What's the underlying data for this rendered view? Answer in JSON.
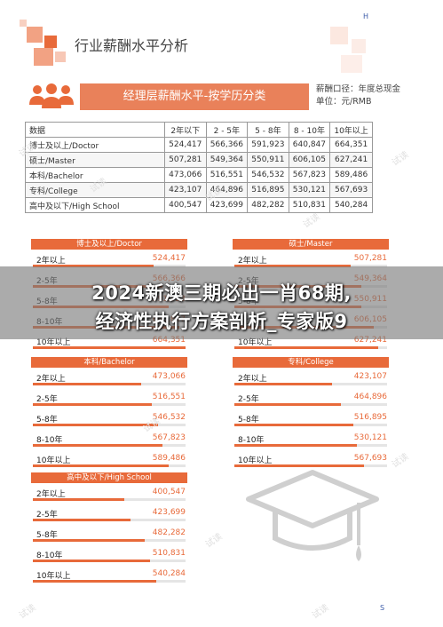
{
  "page": {
    "section_title": "行业薪酬水平分析",
    "corner_letter_top": "H",
    "corner_letter_bottom": "S",
    "watermark_text": "试读"
  },
  "banner": {
    "title": "经理层薪酬水平-按学历分类"
  },
  "unit_note": {
    "line1": "薪酬口径：年度总现金",
    "line2": "单位：元/RMB"
  },
  "table": {
    "headers": [
      "数据",
      "2年以下",
      "2 - 5年",
      "5 - 8年",
      "8 - 10年",
      "10年以上"
    ],
    "rows": [
      {
        "label": "博士及以上/Doctor",
        "values": [
          "524,417",
          "566,366",
          "591,923",
          "640,847",
          "664,351"
        ]
      },
      {
        "label": "硕士/Master",
        "values": [
          "507,281",
          "549,364",
          "550,911",
          "606,105",
          "627,241"
        ]
      },
      {
        "label": "本科/Bachelor",
        "values": [
          "473,066",
          "516,551",
          "546,532",
          "567,823",
          "589,486"
        ]
      },
      {
        "label": "专科/College",
        "values": [
          "423,107",
          "464,896",
          "516,895",
          "530,121",
          "567,693"
        ]
      },
      {
        "label": "高中及以下/High School",
        "values": [
          "400,547",
          "423,699",
          "482,282",
          "510,831",
          "540,284"
        ]
      }
    ]
  },
  "panels": [
    {
      "title": "博士及以上/Doctor",
      "rows": [
        {
          "label": "2年以上",
          "value": "524,417",
          "fill": 0.79
        },
        {
          "label": "2-5年",
          "value": "566,366",
          "fill": 0.85
        },
        {
          "label": "5-8年",
          "value": "591,923",
          "fill": 0.89
        },
        {
          "label": "8-10年",
          "value": "640,847",
          "fill": 0.96
        },
        {
          "label": "10年以上",
          "value": "664,351",
          "fill": 1.0
        }
      ]
    },
    {
      "title": "硕士/Master",
      "rows": [
        {
          "label": "2年以上",
          "value": "507,281",
          "fill": 0.76
        },
        {
          "label": "2-5年",
          "value": "549,364",
          "fill": 0.83
        },
        {
          "label": "5-8年",
          "value": "550,911",
          "fill": 0.83
        },
        {
          "label": "8-10年",
          "value": "606,105",
          "fill": 0.91
        },
        {
          "label": "10年以上",
          "value": "627,241",
          "fill": 0.94
        }
      ]
    },
    {
      "title": "本科/Bachelor",
      "rows": [
        {
          "label": "2年以上",
          "value": "473,066",
          "fill": 0.71
        },
        {
          "label": "2-5年",
          "value": "516,551",
          "fill": 0.78
        },
        {
          "label": "5-8年",
          "value": "546,532",
          "fill": 0.82
        },
        {
          "label": "8-10年",
          "value": "567,823",
          "fill": 0.85
        },
        {
          "label": "10年以上",
          "value": "589,486",
          "fill": 0.89
        }
      ]
    },
    {
      "title": "专科/College",
      "rows": [
        {
          "label": "2年以上",
          "value": "423,107",
          "fill": 0.64
        },
        {
          "label": "2-5年",
          "value": "464,896",
          "fill": 0.7
        },
        {
          "label": "5-8年",
          "value": "516,895",
          "fill": 0.78
        },
        {
          "label": "8-10年",
          "value": "530,121",
          "fill": 0.8
        },
        {
          "label": "10年以上",
          "value": "567,693",
          "fill": 0.85
        }
      ]
    },
    {
      "title": "高中及以下/High School",
      "rows": [
        {
          "label": "2年以上",
          "value": "400,547",
          "fill": 0.6
        },
        {
          "label": "2-5年",
          "value": "423,699",
          "fill": 0.64
        },
        {
          "label": "5-8年",
          "value": "482,282",
          "fill": 0.73
        },
        {
          "label": "8-10年",
          "value": "510,831",
          "fill": 0.77
        },
        {
          "label": "10年以上",
          "value": "540,284",
          "fill": 0.81
        }
      ]
    }
  ],
  "overlay": {
    "line1": "2024新澳三期必出一肖68期,",
    "line2": "经济性执行方案剖析_专家版9"
  },
  "colors": {
    "accent": "#e86a3a",
    "accent_light": "#f2a283",
    "banner": "#e9815a"
  }
}
